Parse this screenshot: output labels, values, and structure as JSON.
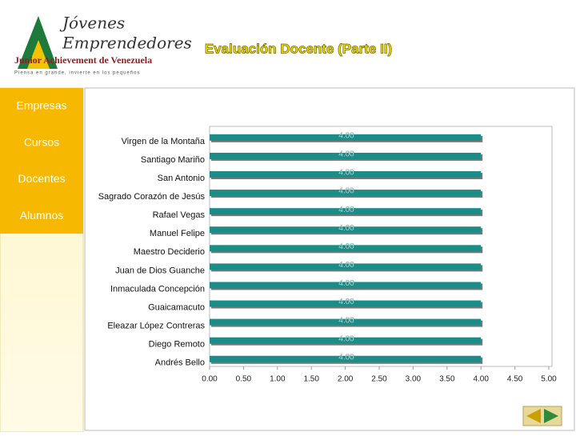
{
  "header": {
    "logo_line1": "Jóvenes",
    "logo_line2": "Emprendedores",
    "logo_org": "Junior Achievement de Venezuela",
    "logo_tagline": "Piensa en grande, invierte en los pequeños",
    "title": "Evaluación Docente (Parte II)"
  },
  "nav": [
    "Empresas",
    "Cursos",
    "Docentes",
    "Alumnos"
  ],
  "chart_data": {
    "type": "hbar",
    "categories": [
      "Virgen de la Montaña",
      "Santiago Mariño",
      "San Antonio",
      "Sagrado Corazón de Jesús",
      "Rafael Vegas",
      "Manuel Felipe",
      "Maestro Deciderio",
      "Juan de Dios Guanche",
      "Inmaculada Concepción",
      "Guaicamacuto",
      "Eleazar López Contreras",
      "Diego Remoto",
      "Andrés Bello"
    ],
    "values": [
      4,
      4,
      4,
      4,
      4,
      4,
      4,
      4,
      4,
      4,
      4,
      4,
      4
    ],
    "value_labels": [
      "4.00",
      "4.00",
      "4.00",
      "4.00",
      "4.00",
      "4.00",
      "4.00",
      "4.00",
      "4.00",
      "4.00",
      "4.00",
      "4.00",
      "4.00"
    ],
    "color": "#1b8c88",
    "xlim": [
      0,
      5
    ],
    "xticks": [
      {
        "value": 0,
        "label": "0.00"
      },
      {
        "value": 0.5,
        "label": "0.50"
      },
      {
        "value": 1,
        "label": "1.00"
      },
      {
        "value": 1.5,
        "label": "1.50"
      },
      {
        "value": 2,
        "label": "2.00"
      },
      {
        "value": 2.5,
        "label": "2.50"
      },
      {
        "value": 3,
        "label": "3.00"
      },
      {
        "value": 3.5,
        "label": "3.50"
      },
      {
        "value": 4,
        "label": "4.00"
      },
      {
        "value": 4.5,
        "label": "4.50"
      },
      {
        "value": 5,
        "label": "5.00"
      }
    ]
  }
}
